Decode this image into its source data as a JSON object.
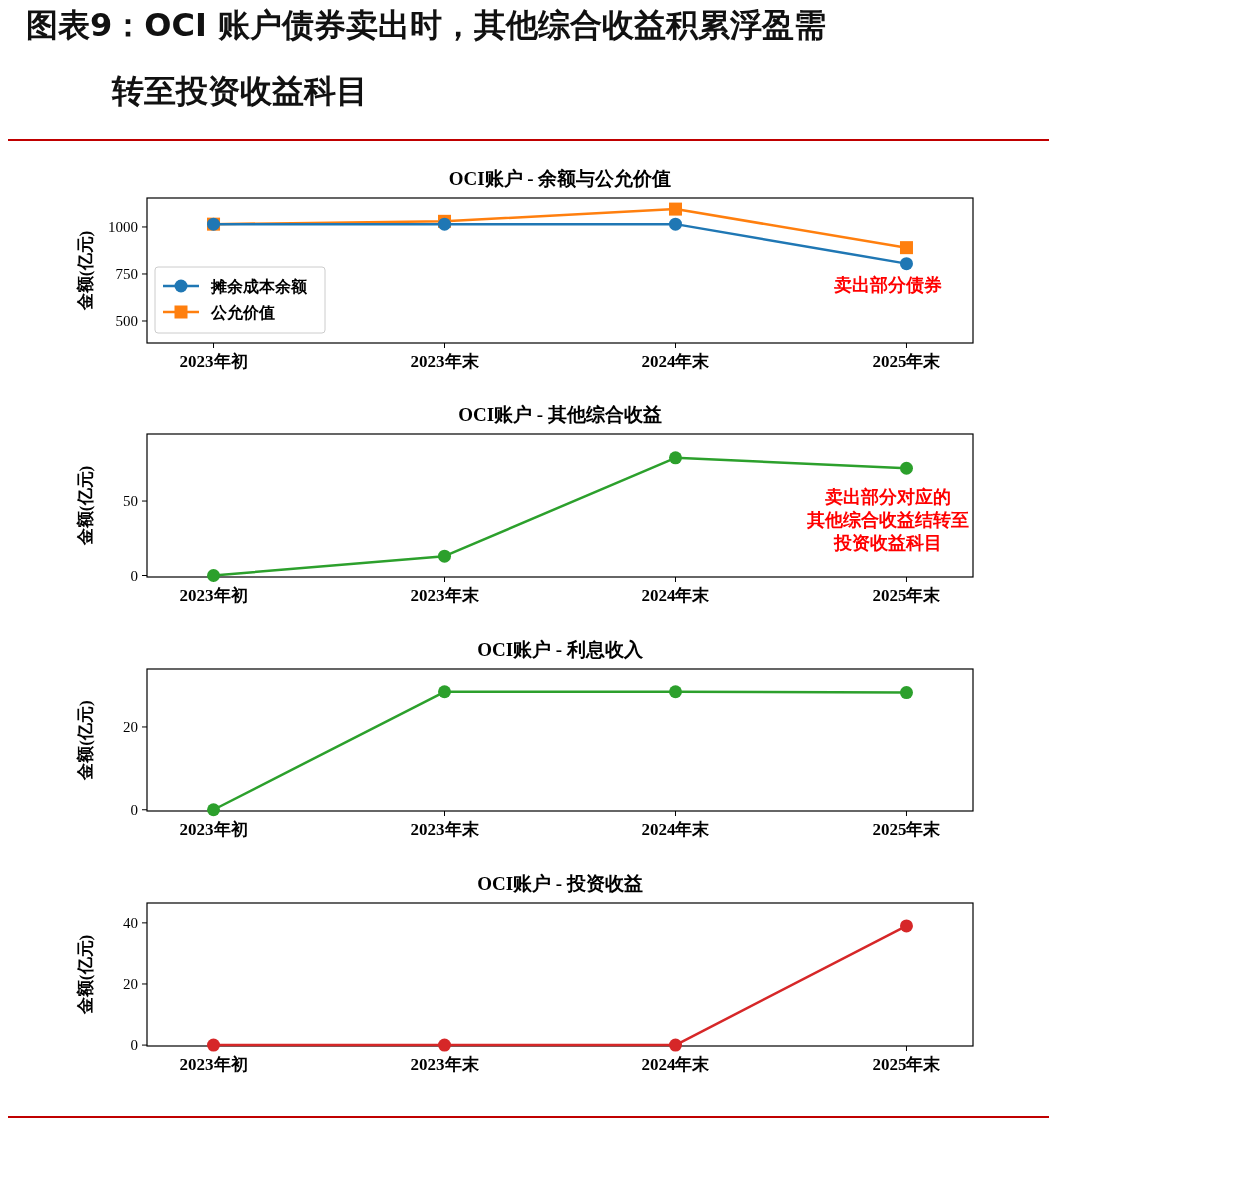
{
  "chart_data": [
    {
      "type": "other",
      "title": "图表9：OCI 账户债券卖出时，其他综合收益积累浮盈需转至投资收益科目"
    },
    {
      "type": "line",
      "title": "OCI账户 - 余额与公允价值",
      "ylabel": "金额(亿元)",
      "categories": [
        "2023年初",
        "2023年末",
        "2024年末",
        "2025年末"
      ],
      "marker": "circle",
      "legend": "bottom left",
      "ylim": [
        383,
        1154
      ],
      "yticks": [
        500,
        750,
        1000
      ],
      "annotations": [
        "卖出部分债券"
      ],
      "series": [
        {
          "name": "摊余成本余额",
          "color": "#1f77b4",
          "values": [
            1015,
            1015,
            1015,
            805
          ]
        },
        {
          "name": "公允价值",
          "color": "#ff7f0e",
          "marker": "square",
          "values": [
            1015,
            1030,
            1095,
            890
          ]
        }
      ]
    },
    {
      "type": "line",
      "title": "OCI账户 - 其他综合收益",
      "ylabel": "金额(亿元)",
      "categories": [
        "2023年初",
        "2023年末",
        "2024年末",
        "2025年末"
      ],
      "marker": "circle",
      "ylim": [
        -1,
        95
      ],
      "yticks": [
        0,
        50
      ],
      "annotations": [
        "卖出部分对应的其他综合收益结转至投资收益科目"
      ],
      "series": [
        {
          "color": "#2ca02c",
          "values": [
            0,
            13,
            79,
            72
          ]
        }
      ]
    },
    {
      "type": "line",
      "title": "OCI账户 - 利息收入",
      "ylabel": "金额(亿元)",
      "categories": [
        "2023年初",
        "2023年末",
        "2024年末",
        "2025年末"
      ],
      "marker": "circle",
      "ylim": [
        -0.3,
        34
      ],
      "yticks": [
        0,
        20
      ],
      "series": [
        {
          "color": "#2ca02c",
          "values": [
            0,
            28.5,
            28.5,
            28.3
          ]
        }
      ]
    },
    {
      "type": "line",
      "title": "OCI账户 - 投资收益",
      "ylabel": "金额(亿元)",
      "categories": [
        "2023年初",
        "2023年末",
        "2024年末",
        "2025年末"
      ],
      "marker": "circle",
      "ylim": [
        -0.3,
        46.5
      ],
      "yticks": [
        0,
        20,
        40
      ],
      "series": [
        {
          "color": "#d62728",
          "values": [
            0,
            0,
            0,
            39
          ]
        }
      ]
    }
  ]
}
